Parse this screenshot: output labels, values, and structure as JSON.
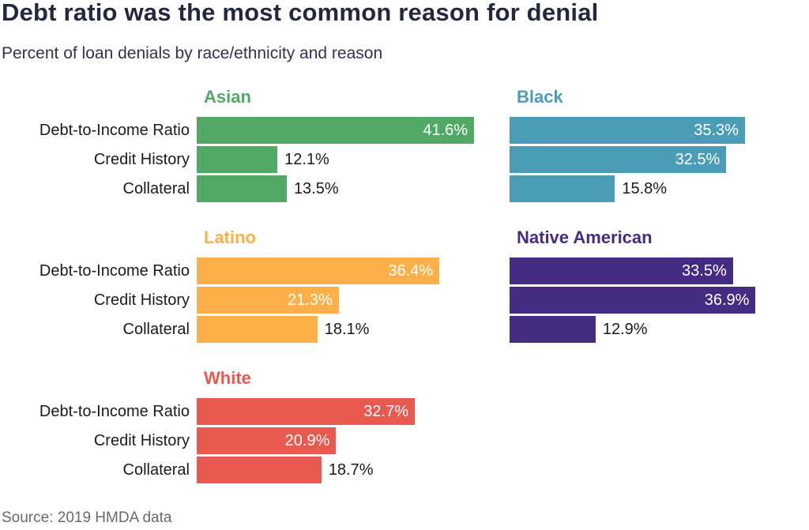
{
  "chart_data": {
    "type": "bar",
    "title": "Debt ratio was the most common reason for denial",
    "subtitle": "Percent of loan denials by race/ethnicity and reason",
    "source": "Source: 2019 HMDA data",
    "orientation": "horizontal",
    "categories": [
      "Debt-to-Income Ratio",
      "Credit History",
      "Collateral"
    ],
    "value_format": "{v}%",
    "xlim": [
      0,
      45
    ],
    "grid": false,
    "legend": "none",
    "panels": [
      {
        "name": "Asian",
        "color": "#52a865",
        "values": [
          41.6,
          12.1,
          13.5
        ],
        "labels": [
          "41.6%",
          "12.1%",
          "13.5%"
        ],
        "show_category_labels": true
      },
      {
        "name": "Black",
        "color": "#4a9db5",
        "values": [
          35.3,
          32.5,
          15.8
        ],
        "labels": [
          "35.3%",
          "32.5%",
          "15.8%"
        ],
        "show_category_labels": false
      },
      {
        "name": "Latino",
        "color": "#fdb04a",
        "values": [
          36.4,
          21.3,
          18.1
        ],
        "labels": [
          "36.4%",
          "21.3%",
          "18.1%"
        ],
        "show_category_labels": true
      },
      {
        "name": "Native American",
        "color": "#452b82",
        "values": [
          33.5,
          36.9,
          12.9
        ],
        "labels": [
          "33.5%",
          "36.9%",
          "12.9%"
        ],
        "show_category_labels": false
      },
      {
        "name": "White",
        "color": "#e85a50",
        "values": [
          32.7,
          20.9,
          18.7
        ],
        "labels": [
          "32.7%",
          "20.9%",
          "18.7%"
        ],
        "show_category_labels": true
      }
    ]
  }
}
